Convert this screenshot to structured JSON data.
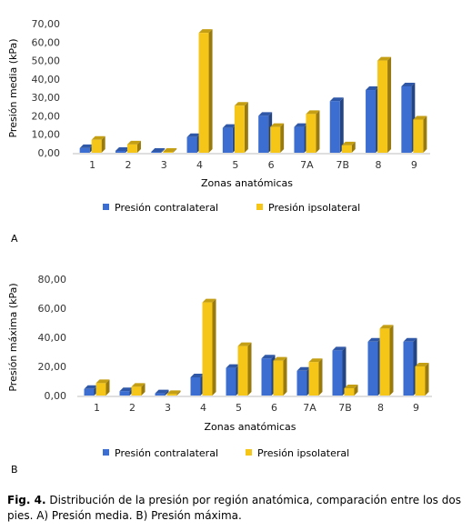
{
  "chart_data": [
    {
      "type": "bar",
      "panel_label": "A",
      "categories": [
        "1",
        "2",
        "3",
        "4",
        "5",
        "6",
        "7A",
        "7B",
        "8",
        "9"
      ],
      "series": [
        {
          "name": "Presión contralateral",
          "color": "#3c6ed2",
          "values": [
            2.5,
            1.0,
            0.5,
            8.5,
            13.5,
            20.0,
            14.0,
            28.0,
            34.0,
            36.0
          ]
        },
        {
          "name": "Presión ipsolateral",
          "color": "#f5c518",
          "values": [
            7.0,
            4.5,
            0.5,
            65.0,
            25.5,
            14.0,
            21.0,
            4.0,
            50.0,
            18.0
          ]
        }
      ],
      "xlabel": "Zonas anatómicas",
      "ylabel": "Presión media (kPa)",
      "ylim": [
        0,
        70
      ],
      "yticks": [
        "0,00",
        "10,00",
        "20,00",
        "30,00",
        "40,00",
        "50,00",
        "60,00",
        "70,00"
      ],
      "legend_position": "bottom",
      "grid": false
    },
    {
      "type": "bar",
      "panel_label": "B",
      "categories": [
        "1",
        "2",
        "3",
        "4",
        "5",
        "6",
        "7A",
        "7B",
        "8",
        "9"
      ],
      "series": [
        {
          "name": "Presión contralateral",
          "color": "#3c6ed2",
          "values": [
            4.5,
            3.0,
            1.5,
            12.5,
            19.0,
            25.5,
            17.0,
            31.0,
            37.0,
            37.0
          ]
        },
        {
          "name": "Presión ipsolateral",
          "color": "#f5c518",
          "values": [
            8.5,
            6.0,
            1.0,
            64.0,
            34.0,
            24.0,
            23.0,
            5.0,
            46.0,
            20.0
          ]
        }
      ],
      "xlabel": "Zonas anatómicas",
      "ylabel": "Presión máxima (kPa)",
      "ylim": [
        0,
        80
      ],
      "yticks": [
        "0,00",
        "20,00",
        "40,00",
        "60,00",
        "80,00"
      ],
      "legend_position": "bottom",
      "grid": false
    }
  ],
  "caption": {
    "label": "Fig. 4.",
    "text": " Distribución de la presión por región anatómica, comparación entre los dos pies. A) Presión media. B) Presión máxima."
  }
}
